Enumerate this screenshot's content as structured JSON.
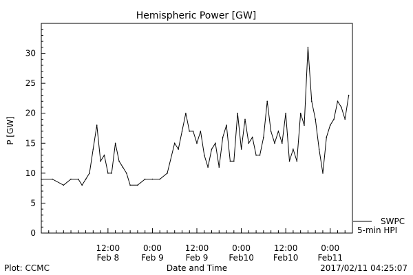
{
  "chart_data": {
    "type": "line",
    "title": "Hemispheric Power [GW]",
    "xlabel": "Date and Time",
    "ylabel": "P [GW]",
    "ylim": [
      0,
      35
    ],
    "yticks": [
      0,
      5,
      10,
      15,
      20,
      25,
      30
    ],
    "xlim": [
      "2017-02-07 18:00",
      "2017-02-11 06:00"
    ],
    "xticks": [
      {
        "time": "2017-02-08 12:00",
        "top": "12:00",
        "bottom": "Feb 8"
      },
      {
        "time": "2017-02-09 00:00",
        "top": "0:00",
        "bottom": "Feb 9"
      },
      {
        "time": "2017-02-09 12:00",
        "top": "12:00",
        "bottom": "Feb 9"
      },
      {
        "time": "2017-02-10 00:00",
        "top": "0:00",
        "bottom": "Feb10"
      },
      {
        "time": "2017-02-10 12:00",
        "top": "12:00",
        "bottom": "Feb10"
      },
      {
        "time": "2017-02-11 00:00",
        "top": "0:00",
        "bottom": "Feb11"
      }
    ],
    "grid": false,
    "legend_position": "bottom-right",
    "series": [
      {
        "name": "SWPC",
        "color": "#000000",
        "x": [
          "2017-02-07 18:00",
          "2017-02-07 21:00",
          "2017-02-08 00:00",
          "2017-02-08 02:00",
          "2017-02-08 04:00",
          "2017-02-08 05:00",
          "2017-02-08 06:00",
          "2017-02-08 07:00",
          "2017-02-08 08:00",
          "2017-02-08 09:00",
          "2017-02-08 10:00",
          "2017-02-08 11:00",
          "2017-02-08 12:00",
          "2017-02-08 13:00",
          "2017-02-08 14:00",
          "2017-02-08 15:00",
          "2017-02-08 16:00",
          "2017-02-08 17:00",
          "2017-02-08 18:00",
          "2017-02-08 20:00",
          "2017-02-08 22:00",
          "2017-02-09 00:00",
          "2017-02-09 02:00",
          "2017-02-09 04:00",
          "2017-02-09 06:00",
          "2017-02-09 07:00",
          "2017-02-09 08:00",
          "2017-02-09 09:00",
          "2017-02-09 10:00",
          "2017-02-09 11:00",
          "2017-02-09 12:00",
          "2017-02-09 13:00",
          "2017-02-09 14:00",
          "2017-02-09 15:00",
          "2017-02-09 16:00",
          "2017-02-09 17:00",
          "2017-02-09 18:00",
          "2017-02-09 19:00",
          "2017-02-09 20:00",
          "2017-02-09 21:00",
          "2017-02-09 22:00",
          "2017-02-09 23:00",
          "2017-02-10 00:00",
          "2017-02-10 01:00",
          "2017-02-10 02:00",
          "2017-02-10 03:00",
          "2017-02-10 04:00",
          "2017-02-10 05:00",
          "2017-02-10 06:00",
          "2017-02-10 07:00",
          "2017-02-10 08:00",
          "2017-02-10 09:00",
          "2017-02-10 10:00",
          "2017-02-10 11:00",
          "2017-02-10 12:00",
          "2017-02-10 13:00",
          "2017-02-10 14:00",
          "2017-02-10 15:00",
          "2017-02-10 16:00",
          "2017-02-10 17:00",
          "2017-02-10 18:00",
          "2017-02-10 19:00",
          "2017-02-10 20:00",
          "2017-02-10 21:00",
          "2017-02-10 22:00",
          "2017-02-10 23:00",
          "2017-02-11 00:00",
          "2017-02-11 01:00",
          "2017-02-11 02:00",
          "2017-02-11 03:00",
          "2017-02-11 04:00",
          "2017-02-11 05:00"
        ],
        "values": [
          9,
          9,
          8,
          9,
          9,
          8,
          9,
          10,
          14,
          18,
          12,
          13,
          10,
          10,
          15,
          12,
          11,
          10,
          8,
          8,
          9,
          9,
          9,
          10,
          15,
          14,
          17,
          20,
          17,
          17,
          15,
          17,
          13,
          11,
          14,
          15,
          11,
          16,
          18,
          12,
          12,
          20,
          14,
          19,
          15,
          16,
          13,
          13,
          16,
          22,
          17,
          15,
          17,
          15,
          20,
          12,
          14,
          12,
          20,
          18,
          31,
          22,
          19,
          14,
          10,
          16,
          18,
          19,
          22,
          21,
          19,
          23
        ]
      }
    ]
  },
  "legend": {
    "swpc_label": "SWPC",
    "hpi_label": "5-min HPI"
  },
  "footer": {
    "plot_label": "Plot: CCMC",
    "timestamp": "2017/02/11 04:25:07"
  }
}
